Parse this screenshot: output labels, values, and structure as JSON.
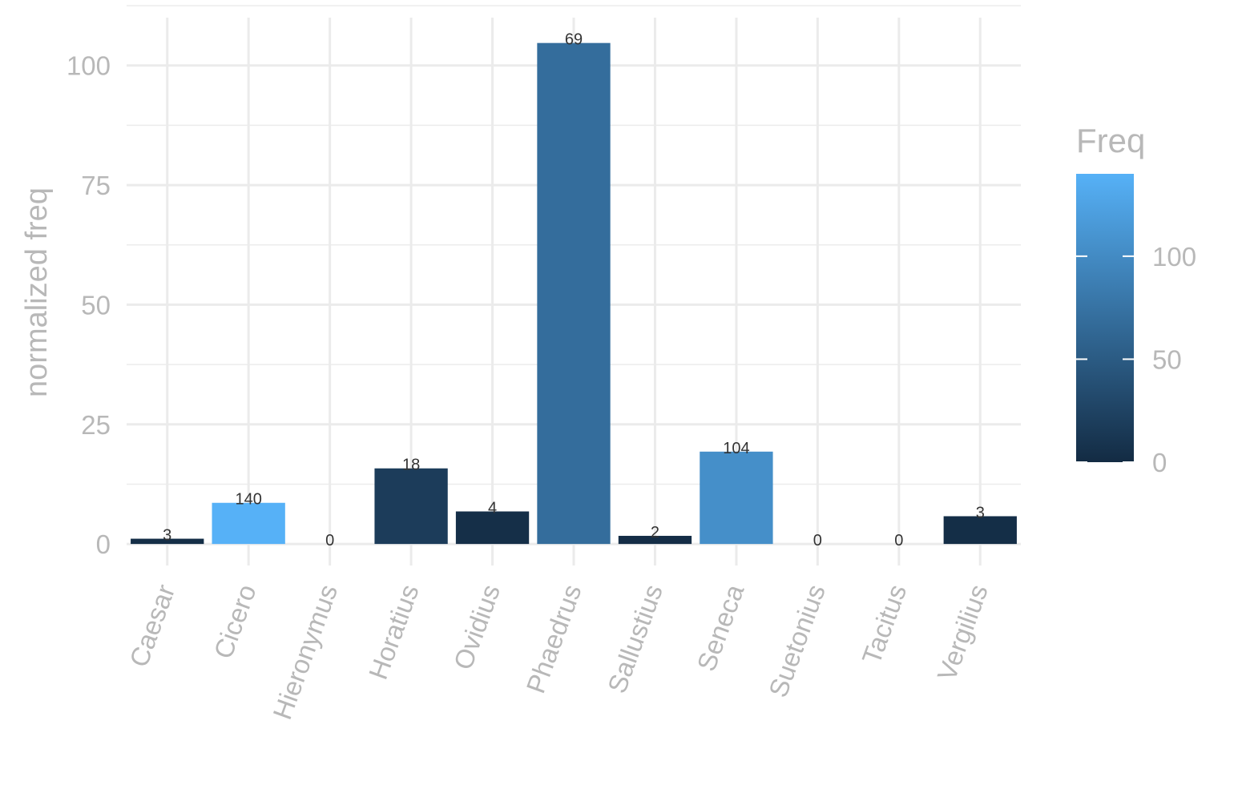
{
  "chart_data": {
    "type": "bar",
    "categories": [
      "Caesar",
      "Cicero",
      "Hieronymus",
      "Horatius",
      "Ovidius",
      "Phaedrus",
      "Sallustius",
      "Seneca",
      "Suetonius",
      "Tacitus",
      "Vergilius"
    ],
    "values": [
      1.1,
      8.6,
      0,
      15.8,
      6.8,
      104.7,
      1.7,
      19.3,
      0,
      0,
      5.8
    ],
    "freq": [
      3,
      140,
      0,
      18,
      4,
      69,
      2,
      104,
      0,
      0,
      3
    ],
    "bar_labels": [
      "3",
      "140",
      "0",
      "18",
      "4",
      "69",
      "2",
      "104",
      "0",
      "0",
      "3"
    ],
    "title": "",
    "xlabel": "",
    "ylabel": "normalized freq",
    "ylim": [
      -4.5,
      110
    ],
    "y_ticks": [
      0,
      25,
      50,
      75,
      100
    ],
    "y_tick_labels": [
      "0",
      "25",
      "50",
      "75",
      "100"
    ],
    "grid": true,
    "legend": {
      "title": "Freq",
      "placement": "right",
      "ticks": [
        0,
        50,
        100
      ],
      "tick_labels": [
        "0",
        "50",
        "100"
      ],
      "range": [
        0,
        140
      ],
      "color_low": "#132B43",
      "color_high": "#56B1F7"
    }
  }
}
